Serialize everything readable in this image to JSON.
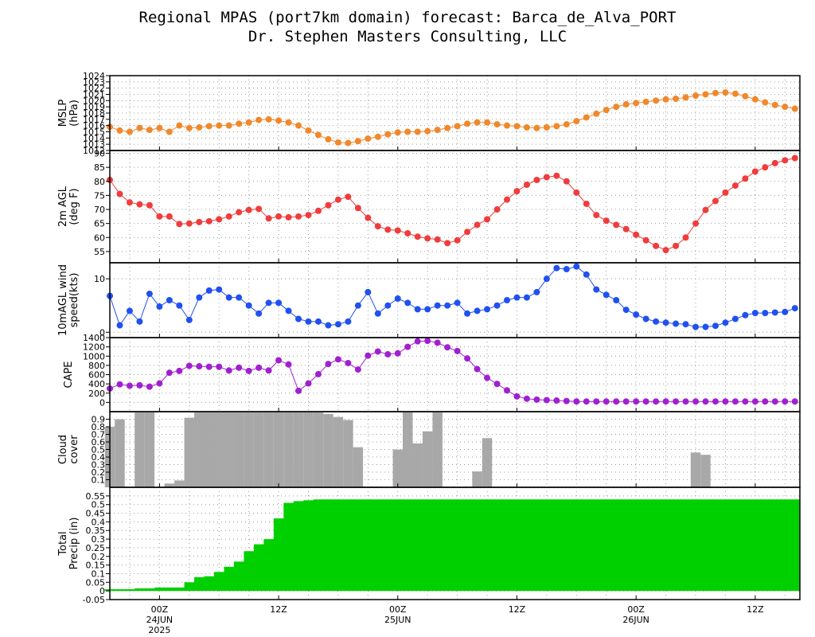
{
  "header": {
    "title": "Regional MPAS (port7km domain) forecast: Barca_de_Alva_PORT",
    "subtitle": "Dr. Stephen Masters Consulting, LLC"
  },
  "x_axis": {
    "tick_labels": [
      "00Z",
      "12Z",
      "00Z",
      "12Z",
      "00Z",
      "12Z"
    ],
    "tick_hours": [
      0,
      12,
      24,
      36,
      48,
      60
    ],
    "date_labels": [
      {
        "hour": 0,
        "lines": [
          "24JUN",
          "2025"
        ]
      },
      {
        "hour": 24,
        "lines": [
          "25JUN"
        ]
      },
      {
        "hour": 48,
        "lines": [
          "26JUN"
        ]
      }
    ],
    "start_hour": -5,
    "end_hour": 64.5
  },
  "colors": {
    "mslp": "#f0882c",
    "temp": "#f03c3c",
    "wind": "#2050f0",
    "cape": "#a020d0",
    "cloud": "#a8a8a8",
    "precip": "#00d000",
    "grid": "#9a9a9a"
  },
  "chart_data": [
    {
      "type": "line",
      "ylabel": [
        "MSLP",
        "(hPa)"
      ],
      "ylim": [
        1012,
        1024
      ],
      "yticks": [
        1012,
        1013,
        1014,
        1015,
        1016,
        1017,
        1018,
        1019,
        1020,
        1021,
        1022,
        1023,
        1024
      ],
      "x_hours": [
        -5,
        -4,
        -3,
        -2,
        -1,
        0,
        1,
        2,
        3,
        4,
        5,
        6,
        7,
        8,
        9,
        10,
        11,
        12,
        13,
        14,
        15,
        16,
        17,
        18,
        19,
        20,
        21,
        22,
        23,
        24,
        25,
        26,
        27,
        28,
        29,
        30,
        31,
        32,
        33,
        34,
        35,
        36,
        37,
        38,
        39,
        40,
        41,
        42,
        43,
        44,
        45,
        46,
        47,
        48,
        49,
        50,
        51,
        52,
        53,
        54,
        55,
        56,
        57,
        58,
        59,
        60,
        61,
        62,
        63,
        64
      ],
      "values": [
        1015.8,
        1015.2,
        1015.0,
        1015.6,
        1015.3,
        1015.6,
        1015.0,
        1016.0,
        1015.6,
        1015.7,
        1015.9,
        1016.0,
        1016.0,
        1016.3,
        1016.5,
        1016.9,
        1017.0,
        1016.8,
        1016.5,
        1016.0,
        1015.2,
        1014.5,
        1013.8,
        1013.3,
        1013.2,
        1013.5,
        1013.9,
        1014.2,
        1014.6,
        1014.9,
        1015.0,
        1015.0,
        1015.1,
        1015.3,
        1015.6,
        1015.9,
        1016.3,
        1016.5,
        1016.5,
        1016.2,
        1016.0,
        1015.9,
        1015.7,
        1015.6,
        1015.7,
        1015.9,
        1016.2,
        1016.7,
        1017.3,
        1017.9,
        1018.5,
        1019.0,
        1019.4,
        1019.6,
        1019.8,
        1020.0,
        1020.2,
        1020.3,
        1020.5,
        1020.8,
        1021.0,
        1021.2,
        1021.3,
        1021.1,
        1020.7,
        1020.2,
        1019.7,
        1019.3,
        1019.0,
        1018.7
      ]
    },
    {
      "type": "line",
      "ylabel": [
        "2m AGL",
        "(deg F)"
      ],
      "ylim": [
        51,
        91
      ],
      "yticks": [
        55,
        60,
        65,
        70,
        75,
        80,
        85,
        90
      ],
      "x_hours": [
        -5,
        -4,
        -3,
        -2,
        -1,
        0,
        1,
        2,
        3,
        4,
        5,
        6,
        7,
        8,
        9,
        10,
        11,
        12,
        13,
        14,
        15,
        16,
        17,
        18,
        19,
        20,
        21,
        22,
        23,
        24,
        25,
        26,
        27,
        28,
        29,
        30,
        31,
        32,
        33,
        34,
        35,
        36,
        37,
        38,
        39,
        40,
        41,
        42,
        43,
        44,
        45,
        46,
        47,
        48,
        49,
        50,
        51,
        52,
        53,
        54,
        55,
        56,
        57,
        58,
        59,
        60,
        61,
        62,
        63,
        64
      ],
      "values": [
        80.5,
        75.5,
        72.5,
        71.8,
        71.5,
        67.5,
        67.5,
        64.8,
        65.0,
        65.5,
        65.8,
        66.5,
        67.5,
        69.0,
        69.8,
        70.2,
        66.8,
        67.5,
        67.2,
        67.5,
        68.0,
        69.5,
        71.5,
        73.5,
        74.5,
        70.5,
        67.0,
        64.0,
        62.8,
        62.5,
        61.5,
        60.3,
        59.7,
        59.3,
        58.0,
        59.0,
        62.0,
        64.5,
        66.5,
        70.0,
        73.5,
        76.5,
        78.8,
        80.5,
        81.5,
        82.0,
        80.0,
        76.0,
        72.0,
        68.0,
        66.0,
        64.5,
        63.0,
        61.0,
        59.0,
        57.0,
        55.5,
        57.0,
        60.0,
        65.0,
        69.8,
        73.0,
        76.0,
        78.5,
        81.0,
        83.5,
        85.0,
        86.5,
        87.5,
        88.3
      ]
    },
    {
      "type": "line",
      "ylabel": [
        "10mAGL wind",
        "speed(kts)"
      ],
      "ylim": [
        -1,
        13
      ],
      "yticks": [
        0,
        10
      ],
      "x_hours": [
        -5,
        -4,
        -3,
        -2,
        -1,
        0,
        1,
        2,
        3,
        4,
        5,
        6,
        7,
        8,
        9,
        10,
        11,
        12,
        13,
        14,
        15,
        16,
        17,
        18,
        19,
        20,
        21,
        22,
        23,
        24,
        25,
        26,
        27,
        28,
        29,
        30,
        31,
        32,
        33,
        34,
        35,
        36,
        37,
        38,
        39,
        40,
        41,
        42,
        43,
        44,
        45,
        46,
        47,
        48,
        49,
        50,
        51,
        52,
        53,
        54,
        55,
        56,
        57,
        58,
        59,
        60,
        61,
        62,
        63,
        64
      ],
      "values": [
        6.8,
        1.3,
        4.0,
        2.0,
        7.2,
        4.8,
        6.0,
        5.0,
        2.3,
        6.5,
        7.8,
        8.0,
        6.5,
        6.5,
        5.0,
        3.5,
        5.5,
        5.5,
        4.0,
        2.5,
        2.0,
        2.0,
        1.3,
        1.5,
        2.0,
        5.0,
        7.5,
        3.5,
        5.0,
        6.3,
        5.5,
        4.3,
        4.3,
        5.0,
        5.0,
        5.5,
        3.5,
        4.0,
        4.3,
        5.0,
        6.0,
        6.5,
        6.5,
        7.5,
        10.0,
        12.0,
        11.8,
        12.3,
        10.8,
        8.0,
        7.0,
        6.0,
        4.2,
        3.3,
        2.5,
        2.0,
        1.8,
        1.6,
        1.5,
        1.0,
        1.0,
        1.2,
        1.8,
        2.5,
        3.2,
        3.6,
        3.6,
        3.7,
        3.8,
        4.5
      ]
    },
    {
      "type": "line",
      "ylabel": [
        "CAPE"
      ],
      "ylim": [
        -200,
        1400
      ],
      "yticks": [
        0,
        200,
        400,
        600,
        800,
        1000,
        1200,
        1400
      ],
      "x_hours": [
        -5,
        -4,
        -3,
        -2,
        -1,
        0,
        1,
        2,
        3,
        4,
        5,
        6,
        7,
        8,
        9,
        10,
        11,
        12,
        13,
        14,
        15,
        16,
        17,
        18,
        19,
        20,
        21,
        22,
        23,
        24,
        25,
        26,
        27,
        28,
        29,
        30,
        31,
        32,
        33,
        34,
        35,
        36,
        37,
        38,
        39,
        40,
        41,
        42,
        43,
        44,
        45,
        46,
        47,
        48,
        49,
        50,
        51,
        52,
        53,
        54,
        55,
        56,
        57,
        58,
        59,
        60,
        61,
        62,
        63,
        64
      ],
      "values": [
        300,
        390,
        360,
        370,
        340,
        410,
        640,
        680,
        790,
        780,
        770,
        770,
        690,
        750,
        680,
        750,
        690,
        910,
        820,
        250,
        410,
        610,
        830,
        930,
        850,
        710,
        1010,
        1100,
        1040,
        1060,
        1200,
        1320,
        1330,
        1290,
        1190,
        1110,
        950,
        720,
        530,
        400,
        260,
        130,
        80,
        60,
        50,
        40,
        30,
        20,
        20,
        20,
        20,
        20,
        20,
        20,
        20,
        20,
        20,
        20,
        20,
        20,
        20,
        20,
        20,
        20,
        20,
        20,
        20,
        20,
        20,
        20
      ]
    },
    {
      "type": "bar",
      "ylabel": [
        "Cloud",
        "cover"
      ],
      "ylim": [
        0,
        1
      ],
      "yticks": [
        0.1,
        0.2,
        0.3,
        0.4,
        0.5,
        0.6,
        0.7,
        0.8,
        0.9
      ],
      "x_hours": [
        -5,
        -4,
        -3,
        -2,
        -1,
        0,
        1,
        2,
        3,
        4,
        5,
        6,
        7,
        8,
        9,
        10,
        11,
        12,
        13,
        14,
        15,
        16,
        17,
        18,
        19,
        20,
        21,
        22,
        23,
        24,
        25,
        26,
        27,
        28,
        29,
        30,
        31,
        32,
        33,
        34,
        35,
        36,
        37,
        38,
        39,
        40,
        41,
        42,
        43,
        44,
        45,
        46,
        47,
        48,
        49,
        50,
        51,
        52,
        53,
        54,
        55,
        56,
        57,
        58,
        59,
        60,
        61,
        62,
        63,
        64
      ],
      "values": [
        0.8,
        0.9,
        0.0,
        1.0,
        1.0,
        0.0,
        0.05,
        0.09,
        0.92,
        1.0,
        1.0,
        1.0,
        1.0,
        1.0,
        1.0,
        1.0,
        1.0,
        1.0,
        1.0,
        1.0,
        1.0,
        1.0,
        0.97,
        0.93,
        0.89,
        0.53,
        0.01,
        0.01,
        0.0,
        0.5,
        1.0,
        0.58,
        0.74,
        1.0,
        0.0,
        0.0,
        0.0,
        0.21,
        0.65,
        0.0,
        0.0,
        0.0,
        0.0,
        0.0,
        0.0,
        0.0,
        0.0,
        0.0,
        0.0,
        0.0,
        0.0,
        0.0,
        0.0,
        0.0,
        0.0,
        0.0,
        0.0,
        0.0,
        0.0,
        0.46,
        0.43,
        0.0,
        0.0,
        0.0,
        0.0,
        0.0,
        0.0,
        0.0,
        0.0,
        0.0
      ]
    },
    {
      "type": "area",
      "ylabel": [
        "Total",
        "Precip (in)"
      ],
      "ylim": [
        -0.05,
        0.6
      ],
      "yticks": [
        -0.05,
        0,
        0.05,
        0.1,
        0.15,
        0.2,
        0.25,
        0.3,
        0.35,
        0.4,
        0.45,
        0.5,
        0.55
      ],
      "ytick_labels": [
        "-0.05",
        "0",
        "0.05",
        "0.1",
        "0.15",
        "0.2",
        "0.25",
        "0.3",
        "0.35",
        "0.4",
        "0.45",
        "0.5",
        "0.55"
      ],
      "x_hours": [
        -5,
        -4,
        -3,
        -2,
        -1,
        0,
        1,
        2,
        3,
        4,
        5,
        6,
        7,
        8,
        9,
        10,
        11,
        12,
        13,
        14,
        15,
        16,
        17,
        18,
        19,
        20,
        21,
        22,
        23,
        24,
        25,
        26,
        27,
        28,
        29,
        30,
        31,
        32,
        33,
        34,
        35,
        36,
        37,
        38,
        39,
        40,
        41,
        42,
        43,
        44,
        45,
        46,
        47,
        48,
        49,
        50,
        51,
        52,
        53,
        54,
        55,
        56,
        57,
        58,
        59,
        60,
        61,
        62,
        63,
        64
      ],
      "values": [
        0.01,
        0.01,
        0.01,
        0.015,
        0.015,
        0.02,
        0.02,
        0.02,
        0.05,
        0.08,
        0.085,
        0.11,
        0.14,
        0.17,
        0.23,
        0.27,
        0.3,
        0.42,
        0.51,
        0.52,
        0.525,
        0.53,
        0.53,
        0.53,
        0.53,
        0.53,
        0.53,
        0.53,
        0.53,
        0.53,
        0.53,
        0.53,
        0.53,
        0.53,
        0.53,
        0.53,
        0.53,
        0.53,
        0.53,
        0.53,
        0.53,
        0.53,
        0.53,
        0.53,
        0.53,
        0.53,
        0.53,
        0.53,
        0.53,
        0.53,
        0.53,
        0.53,
        0.53,
        0.53,
        0.53,
        0.53,
        0.53,
        0.53,
        0.53,
        0.53,
        0.53,
        0.53,
        0.53,
        0.53,
        0.53,
        0.53,
        0.53,
        0.53,
        0.53,
        0.53
      ]
    }
  ]
}
